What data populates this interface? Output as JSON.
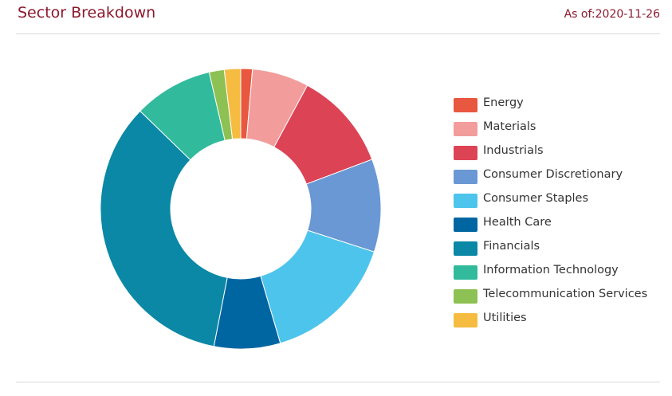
{
  "header": {
    "title": "Sector Breakdown",
    "as_of": "As of:2020-11-26"
  },
  "chart_data": {
    "type": "pie",
    "donut": true,
    "categories": [
      "Energy",
      "Materials",
      "Industrials",
      "Consumer Discretionary",
      "Consumer Staples",
      "Health Care",
      "Financials",
      "Information Technology",
      "Telecommunication Services",
      "Utilities"
    ],
    "values": [
      1.35,
      6.6,
      11.5,
      10.8,
      15.6,
      7.7,
      34.5,
      9.2,
      1.75,
      1.9
    ],
    "colors": [
      "#e8573f",
      "#f29c9c",
      "#dc4455",
      "#6a98d4",
      "#4dc4ec",
      "#0066a1",
      "#0a88a5",
      "#31bb9c",
      "#8dc153",
      "#f5bc41"
    ],
    "legend_position": "right"
  }
}
